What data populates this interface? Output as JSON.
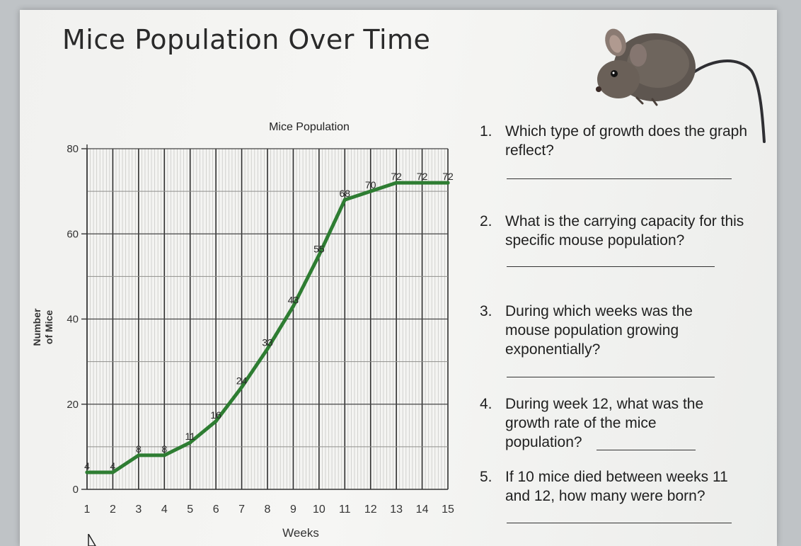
{
  "page": {
    "title": "Mice Population Over Time"
  },
  "chart_data": {
    "type": "line",
    "title": "Mice Population",
    "xlabel": "Weeks",
    "ylabel_line1": "Number",
    "ylabel_line2": "of Mice",
    "x": [
      1,
      2,
      3,
      4,
      5,
      6,
      7,
      8,
      9,
      10,
      11,
      12,
      13,
      14,
      15
    ],
    "x_tick_labels": [
      "1",
      "2",
      "3",
      "4",
      "5",
      "6",
      "7",
      "8",
      "9",
      "10",
      "11",
      "12",
      "13",
      "14",
      "15"
    ],
    "y_ticks": [
      0,
      20,
      40,
      60,
      80
    ],
    "y_tick_labels": [
      "0",
      "20",
      "40",
      "60",
      "80"
    ],
    "xlim": [
      1,
      15
    ],
    "ylim": [
      0,
      80
    ],
    "grid": true,
    "series": [
      {
        "values": [
          4,
          4,
          8,
          8,
          11,
          16,
          24,
          33,
          43,
          55,
          68,
          70,
          72,
          72,
          72
        ],
        "point_labels": [
          "4",
          "4",
          "8",
          "8",
          "11",
          "16",
          "24",
          "33",
          "43",
          "55",
          "68",
          "70",
          "72",
          "72",
          "72"
        ],
        "color": "#2e7d32"
      }
    ]
  },
  "questions": [
    {
      "number": "1.",
      "text": "Which type of growth does the graph reflect?"
    },
    {
      "number": "2.",
      "text": "What is the carrying capacity for this specific mouse population?"
    },
    {
      "number": "3.",
      "text": "During which weeks was the mouse population growing exponentially?"
    },
    {
      "number": "4.",
      "text": "During week 12, what was the growth rate of the mice population?"
    },
    {
      "number": "5.",
      "text": "If 10 mice died between weeks 11 and 12, how many were born?"
    }
  ],
  "icons": {
    "mouse": "mouse-photo",
    "cursor": "cursor-arrow-icon"
  }
}
